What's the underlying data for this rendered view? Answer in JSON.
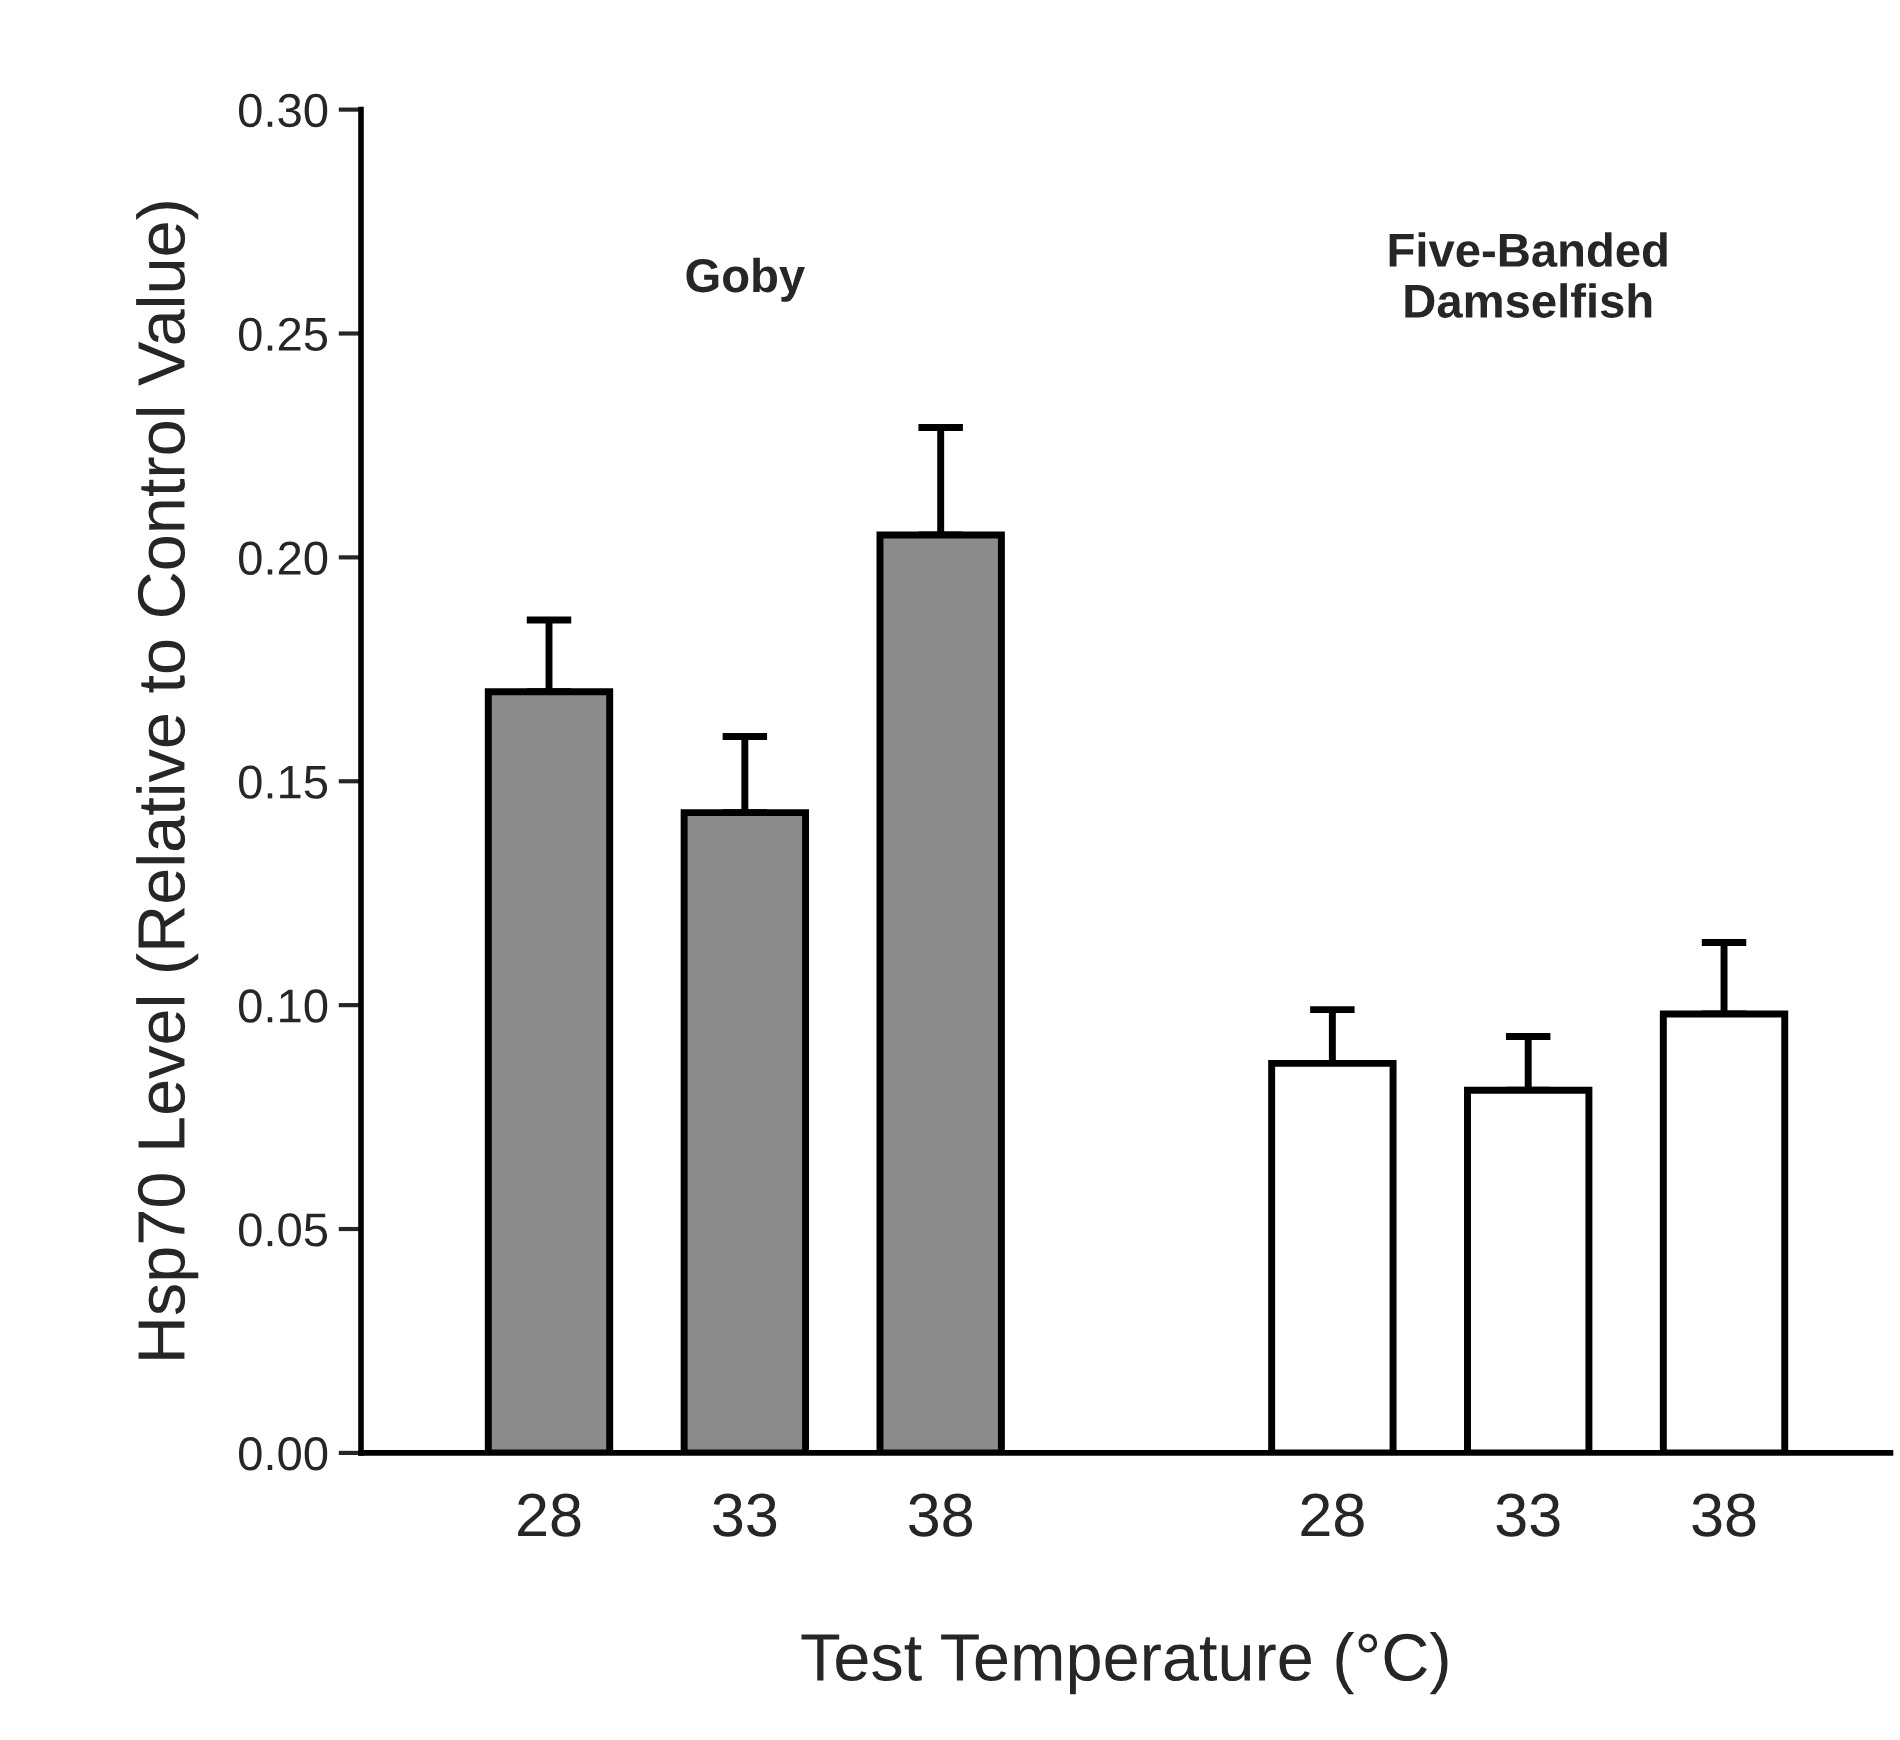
{
  "chart_data": {
    "type": "bar",
    "xlabel": "Test Temperature (°C)",
    "ylabel": "Hsp70 Level (Relative to Control Value)",
    "categories": [
      "28",
      "33",
      "38",
      null,
      "28",
      "33",
      "38"
    ],
    "series": [
      {
        "color": "#8c8c8c",
        "values": [
          0.17,
          0.143,
          0.205,
          null,
          null,
          null,
          null
        ],
        "errors": [
          [
            0.17,
            0.186
          ],
          [
            0.143,
            0.16
          ],
          [
            0.205,
            0.229
          ],
          null,
          null,
          null,
          null
        ]
      },
      {
        "color": "#ffffff",
        "values": [
          null,
          null,
          null,
          null,
          0.087,
          0.081,
          0.098
        ],
        "errors": [
          null,
          null,
          null,
          null,
          [
            0.087,
            0.099
          ],
          [
            0.081,
            0.093
          ],
          [
            0.098,
            0.114
          ]
        ]
      }
    ],
    "ylim": [
      0,
      0.3
    ],
    "yticks": [
      {
        "value": 0,
        "label": "0.00"
      },
      {
        "value": 0.05,
        "label": "0.05"
      },
      {
        "value": 0.1,
        "label": "0.10"
      },
      {
        "value": 0.15,
        "label": "0.15"
      },
      {
        "value": 0.2,
        "label": "0.20"
      },
      {
        "value": 0.25,
        "label": "0.25"
      },
      {
        "value": 0.3,
        "label": "0.30"
      }
    ],
    "annotations": [
      "Goby",
      "Five-Banded\nDamselfish"
    ],
    "grid": false,
    "legend": false
  }
}
